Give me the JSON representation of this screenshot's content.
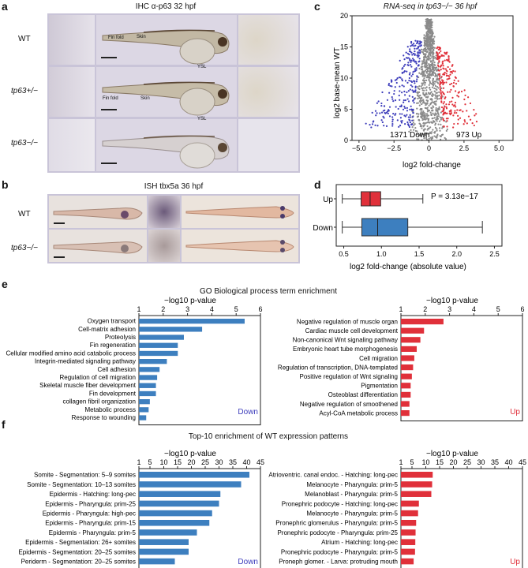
{
  "panel_labels": {
    "a": "a",
    "b": "b",
    "c": "c",
    "d": "d",
    "e": "e",
    "f": "f"
  },
  "panel_a": {
    "title": "IHC α-p63 32 hpf",
    "rows": [
      "WT",
      "tp63+/−",
      "tp63−/−"
    ],
    "annotations": {
      "fin_fold": "Fin fold",
      "skin": "Skin",
      "ysl": "YSL"
    }
  },
  "panel_b": {
    "title": "ISH tbx5a 36 hpf",
    "rows": [
      "WT",
      "tp63−/−"
    ]
  },
  "panel_c": {
    "title": "RNA-seq in tp63−/− 36 hpf",
    "xlabel": "log2 fold-change",
    "ylabel": "log2 base-mean WT",
    "down_label": "1371 Down",
    "up_label": "973 Up",
    "colors": {
      "down": "#3d3dbb",
      "up": "#e0303a",
      "ns": "#8a8a8a"
    },
    "chart_data": {
      "type": "scatter",
      "x_ticks": [
        "−5.0",
        "−2.5",
        "0",
        "2.5",
        "5.0"
      ],
      "y_ticks": [
        "0",
        "5",
        "10",
        "15",
        "20"
      ],
      "xlim": [
        -5.5,
        6
      ],
      "ylim": [
        0,
        20
      ],
      "counts": {
        "down": 1371,
        "up": 973
      }
    }
  },
  "panel_d": {
    "pvalue": "P = 3.13e−17",
    "xlabel": "log2 fold-change (absolute value)",
    "colors": {
      "up": "#e0303a",
      "down": "#3d7fbf"
    },
    "chart_data": {
      "type": "box",
      "x_ticks": [
        "0.5",
        "1.0",
        "1.5",
        "2.0",
        "2.5"
      ],
      "xlim": [
        0.4,
        2.6
      ],
      "categories": [
        "Up",
        "Down"
      ],
      "boxes": [
        {
          "name": "Up",
          "whisker_low": 0.48,
          "q1": 0.73,
          "median": 0.85,
          "q3": 0.99,
          "whisker_high": 1.55
        },
        {
          "name": "Down",
          "whisker_low": 0.48,
          "q1": 0.74,
          "median": 0.95,
          "q3": 1.35,
          "whisker_high": 2.34
        }
      ]
    }
  },
  "panel_e": {
    "title": "GO Biological process term enrichment",
    "axis_label": "−log10 p-value",
    "colors": {
      "down": "#3d7fbf",
      "up": "#e0303a",
      "down_text": "#3d3dbb"
    },
    "charts": [
      {
        "type": "bar",
        "orientation": "horizontal",
        "tag": "Down",
        "x_ticks": [
          "1",
          "2",
          "3",
          "4",
          "5",
          "6"
        ],
        "xlim": [
          1,
          6
        ],
        "categories": [
          "Oxygen transport",
          "Cell-matrix adhesion",
          "Proteolysis",
          "Fin regeneration",
          "Cellular modified amino acid catabolic process",
          "Integrin-mediated signaling pathway",
          "Cell adhesion",
          "Regulation of cell migration",
          "Skeletal muscle fiber development",
          "Fin development",
          "collagen fibril organization",
          "Metabolic process",
          "Response to wounding"
        ],
        "values": [
          5.35,
          3.6,
          2.85,
          2.6,
          2.6,
          2.15,
          1.85,
          1.75,
          1.7,
          1.7,
          1.45,
          1.4,
          1.3
        ]
      },
      {
        "type": "bar",
        "orientation": "horizontal",
        "tag": "Up",
        "x_ticks": [
          "1",
          "2",
          "3",
          "4",
          "5",
          "6"
        ],
        "xlim": [
          1,
          6
        ],
        "categories": [
          "Negative regulation of muscle organ",
          "Cardiac muscle cell development",
          "Non-canonical Wnt signaling pathway",
          "Embryonic heart tube morphogenesis",
          "Cell migration",
          "Regulation of transcription, DNA-templated",
          "Positive regulation of Wnt signaling",
          "Pigmentation",
          "Osteoblast differentiation",
          "Negative regulation of smoothened",
          "Acyl-CoA metabolic process"
        ],
        "values": [
          2.75,
          1.95,
          1.8,
          1.65,
          1.55,
          1.5,
          1.45,
          1.4,
          1.4,
          1.35,
          1.35
        ]
      }
    ]
  },
  "panel_f": {
    "title": "Top-10 enrichment of WT expression patterns",
    "axis_label": "−log10 p-value",
    "charts": [
      {
        "type": "bar",
        "orientation": "horizontal",
        "tag": "Down",
        "x_ticks": [
          "1",
          "5",
          "10",
          "15",
          "20",
          "25",
          "30",
          "35",
          "40",
          "45"
        ],
        "xlim": [
          1,
          45
        ],
        "categories": [
          "Somite - Segmentation: 5–9 somites",
          "Somite - Segmentation: 10–13 somites",
          "Epidermis - Hatching: long-pec",
          "Epidermis - Pharyngula: prim-25",
          "Epidermis - Pharyngula: high-pec",
          "Epidermis - Pharyngula: prim-15",
          "Epidermis - Pharyngula: prim-5",
          "Epidermis - Segmentation: 26+ somites",
          "Epidermis - Segmentation: 20–25 somites",
          "Periderm - Segmentation: 20–25 somites"
        ],
        "values": [
          41,
          38,
          30.5,
          30,
          27.5,
          26.5,
          22,
          19,
          19,
          14
        ]
      },
      {
        "type": "bar",
        "orientation": "horizontal",
        "tag": "Up",
        "x_ticks": [
          "1",
          "5",
          "10",
          "15",
          "20",
          "25",
          "30",
          "35",
          "40",
          "45"
        ],
        "xlim": [
          1,
          45
        ],
        "categories": [
          "Atrioventric. canal endoc. - Hatching: long-pec",
          "Melanocyte - Pharyngula: prim-5",
          "Melanoblast - Pharyngula: prim-5",
          "Pronephric podocyte - Hatching: long-pec",
          "Melanocyte - Pharyngula: prim-5",
          "Pronephric glomerulus - Pharyngula: prim-5",
          "Pronephric podocyte - Pharyngula: prim-25",
          "Atrium - Hatching: long-pec",
          "Pronephric podocyte - Pharyngula: prim-5",
          "Proneph glomer. - Larva: protruding mouth"
        ],
        "values": [
          12.5,
          12.3,
          12,
          7.5,
          7.2,
          6.5,
          6.3,
          6.2,
          6.1,
          5.6
        ]
      }
    ]
  }
}
